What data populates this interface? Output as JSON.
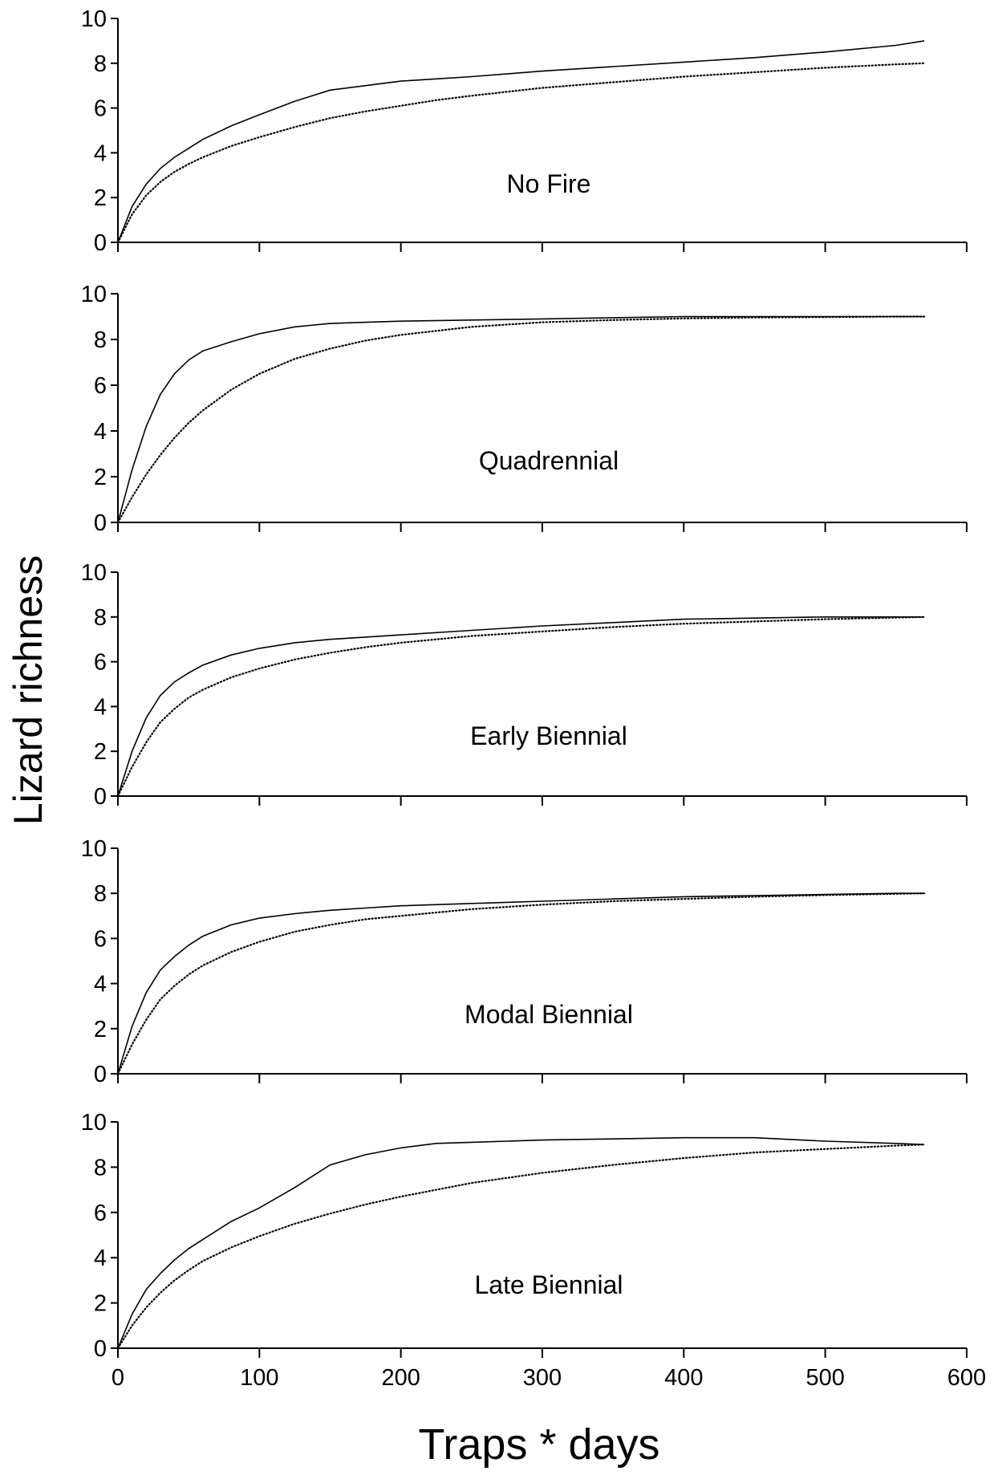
{
  "chart_data": {
    "type": "line",
    "xlabel": "Traps * days",
    "ylabel": "Lizard richness",
    "xlim": [
      0,
      600
    ],
    "ylim": [
      0,
      10
    ],
    "x_ticks": [
      0,
      100,
      200,
      300,
      400,
      500,
      600
    ],
    "y_ticks": [
      0,
      2,
      4,
      6,
      8,
      10
    ],
    "grid": false,
    "legend": "none",
    "panels": [
      {
        "label": "No Fire",
        "series": [
          {
            "style": "solid",
            "x": [
              0,
              10,
              20,
              30,
              40,
              50,
              60,
              80,
              100,
              125,
              150,
              175,
              200,
              225,
              250,
              300,
              350,
              400,
              450,
              500,
              550,
              570
            ],
            "y": [
              0,
              1.6,
              2.6,
              3.3,
              3.8,
              4.2,
              4.6,
              5.2,
              5.7,
              6.3,
              6.8,
              7.0,
              7.2,
              7.3,
              7.4,
              7.65,
              7.85,
              8.05,
              8.25,
              8.5,
              8.8,
              9.0
            ]
          },
          {
            "style": "dotted",
            "x": [
              0,
              10,
              20,
              30,
              40,
              50,
              60,
              80,
              100,
              125,
              150,
              175,
              200,
              225,
              250,
              300,
              350,
              400,
              450,
              500,
              550,
              570
            ],
            "y": [
              0,
              1.25,
              2.1,
              2.7,
              3.15,
              3.5,
              3.8,
              4.3,
              4.7,
              5.15,
              5.55,
              5.85,
              6.1,
              6.35,
              6.55,
              6.9,
              7.15,
              7.4,
              7.6,
              7.8,
              7.95,
              8.0
            ]
          }
        ]
      },
      {
        "label": "Quadrennial",
        "series": [
          {
            "style": "solid",
            "x": [
              0,
              10,
              20,
              30,
              40,
              50,
              60,
              80,
              100,
              125,
              150,
              175,
              200,
              250,
              300,
              350,
              400,
              450,
              500,
              550,
              570
            ],
            "y": [
              0,
              2.3,
              4.2,
              5.6,
              6.5,
              7.1,
              7.5,
              7.9,
              8.25,
              8.55,
              8.7,
              8.75,
              8.8,
              8.85,
              8.9,
              8.95,
              9.0,
              9.0,
              9.0,
              9.0,
              9.0
            ]
          },
          {
            "style": "dotted",
            "x": [
              0,
              10,
              20,
              30,
              40,
              50,
              60,
              80,
              100,
              125,
              150,
              175,
              200,
              250,
              300,
              350,
              400,
              450,
              500,
              550,
              570
            ],
            "y": [
              0,
              1.1,
              2.1,
              2.95,
              3.7,
              4.35,
              4.9,
              5.8,
              6.5,
              7.15,
              7.6,
              7.95,
              8.2,
              8.55,
              8.75,
              8.85,
              8.92,
              8.96,
              8.98,
              9.0,
              9.0
            ]
          }
        ]
      },
      {
        "label": "Early Biennial",
        "series": [
          {
            "style": "solid",
            "x": [
              0,
              10,
              20,
              30,
              40,
              50,
              60,
              80,
              100,
              125,
              150,
              175,
              200,
              250,
              300,
              350,
              400,
              450,
              500,
              550,
              570
            ],
            "y": [
              0,
              2.0,
              3.5,
              4.5,
              5.1,
              5.5,
              5.85,
              6.3,
              6.6,
              6.85,
              7.0,
              7.1,
              7.2,
              7.4,
              7.6,
              7.75,
              7.9,
              7.95,
              8.0,
              8.0,
              8.0
            ]
          },
          {
            "style": "dotted",
            "x": [
              0,
              10,
              20,
              30,
              40,
              50,
              60,
              80,
              100,
              125,
              150,
              175,
              200,
              250,
              300,
              350,
              400,
              450,
              500,
              550,
              570
            ],
            "y": [
              0,
              1.3,
              2.4,
              3.3,
              3.9,
              4.4,
              4.75,
              5.3,
              5.7,
              6.1,
              6.4,
              6.65,
              6.85,
              7.15,
              7.35,
              7.55,
              7.7,
              7.8,
              7.9,
              7.97,
              8.0
            ]
          }
        ]
      },
      {
        "label": "Modal Biennial",
        "series": [
          {
            "style": "solid",
            "x": [
              0,
              10,
              20,
              30,
              40,
              50,
              60,
              80,
              100,
              125,
              150,
              175,
              200,
              250,
              300,
              350,
              400,
              450,
              500,
              550,
              570
            ],
            "y": [
              0,
              2.1,
              3.6,
              4.6,
              5.2,
              5.7,
              6.1,
              6.6,
              6.9,
              7.1,
              7.25,
              7.35,
              7.45,
              7.55,
              7.65,
              7.75,
              7.85,
              7.9,
              7.95,
              8.0,
              8.0
            ]
          },
          {
            "style": "dotted",
            "x": [
              0,
              10,
              20,
              30,
              40,
              50,
              60,
              80,
              100,
              125,
              150,
              175,
              200,
              250,
              300,
              350,
              400,
              450,
              500,
              550,
              570
            ],
            "y": [
              0,
              1.3,
              2.4,
              3.3,
              3.9,
              4.4,
              4.8,
              5.4,
              5.85,
              6.3,
              6.6,
              6.85,
              7.0,
              7.3,
              7.5,
              7.65,
              7.75,
              7.85,
              7.92,
              7.98,
              8.0
            ]
          }
        ]
      },
      {
        "label": "Late Biennial",
        "series": [
          {
            "style": "solid",
            "x": [
              0,
              10,
              20,
              30,
              40,
              50,
              60,
              80,
              100,
              125,
              150,
              175,
              200,
              225,
              250,
              300,
              350,
              400,
              450,
              500,
              550,
              570
            ],
            "y": [
              0,
              1.5,
              2.6,
              3.3,
              3.9,
              4.4,
              4.8,
              5.6,
              6.2,
              7.1,
              8.1,
              8.55,
              8.85,
              9.05,
              9.1,
              9.2,
              9.25,
              9.3,
              9.3,
              9.15,
              9.05,
              9.0
            ]
          },
          {
            "style": "dotted",
            "x": [
              0,
              10,
              20,
              30,
              40,
              50,
              60,
              80,
              100,
              125,
              150,
              175,
              200,
              225,
              250,
              300,
              350,
              400,
              450,
              500,
              550,
              570
            ],
            "y": [
              0,
              1.0,
              1.8,
              2.45,
              3.0,
              3.45,
              3.85,
              4.45,
              4.95,
              5.5,
              5.95,
              6.35,
              6.7,
              7.0,
              7.3,
              7.75,
              8.1,
              8.4,
              8.65,
              8.8,
              8.95,
              9.0
            ]
          }
        ]
      }
    ]
  }
}
